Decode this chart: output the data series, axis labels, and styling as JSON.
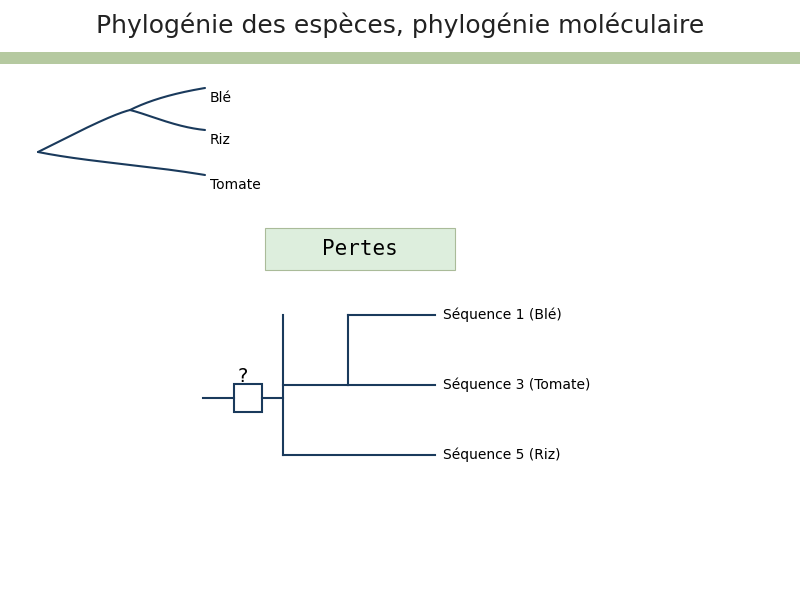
{
  "title": "Phylogénie des espèces, phylogénie moléculaire",
  "title_fontsize": 18,
  "title_color": "#222222",
  "header_bar_color": "#b5c9a0",
  "header_bar_height": 0.018,
  "tree_color": "#1a3a5c",
  "tree_linewidth": 1.5,
  "pertes_box_color": "#ddeedd",
  "pertes_text": "Pertes",
  "pertes_fontsize": 15,
  "species_labels": [
    "Blé",
    "Riz",
    "Tomate"
  ],
  "seq_labels": [
    "Séquence 1 (Blé)",
    "Séquence 3 (Tomate)",
    "Séquence 5 (Riz)"
  ],
  "label_fontsize": 10,
  "question_fontsize": 14
}
